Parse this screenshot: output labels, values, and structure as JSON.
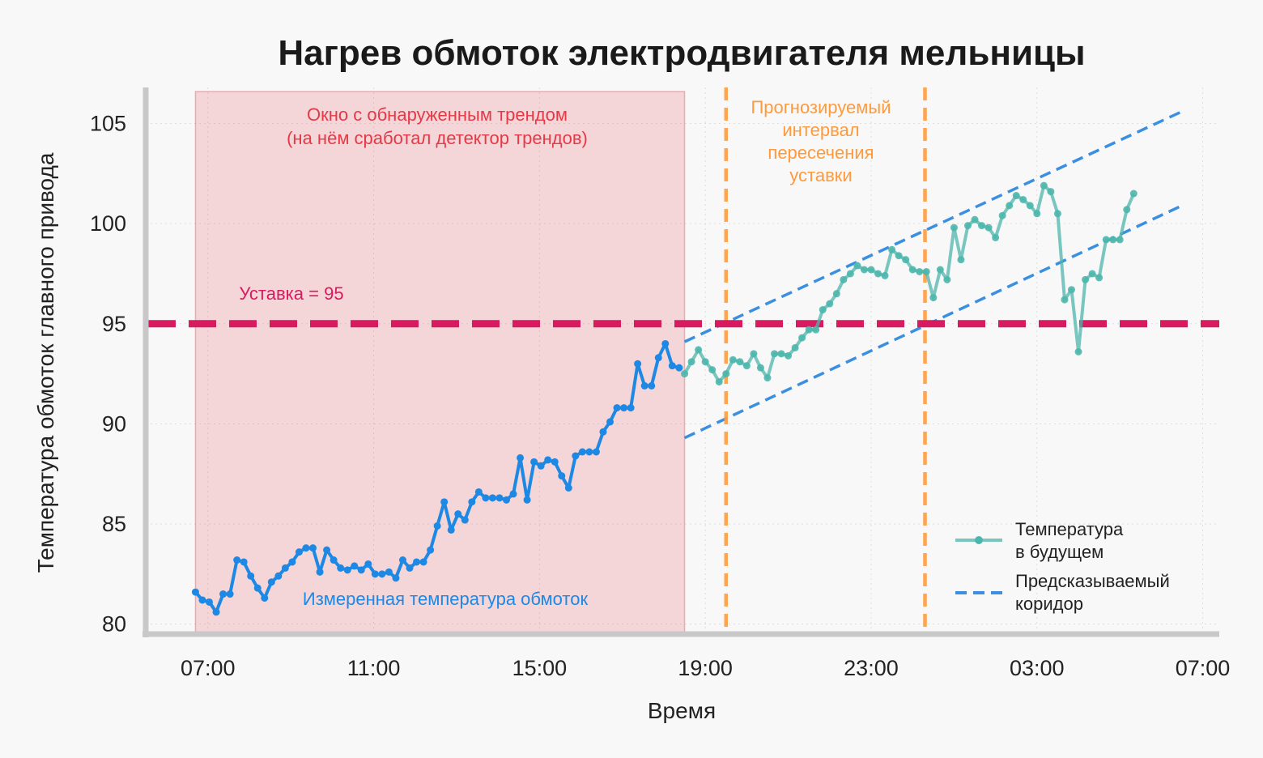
{
  "chart_data": {
    "type": "line",
    "title": "Нагрев обмоток электродвигателя мельницы",
    "xlabel": "Время",
    "ylabel": "Температура обмоток главного привода",
    "x_ticks": [
      "07:00",
      "11:00",
      "15:00",
      "19:00",
      "23:00",
      "03:00",
      "07:00"
    ],
    "x_tick_hours": [
      0,
      4,
      8,
      12,
      16,
      20,
      24
    ],
    "xlim_hours": [
      -1.5,
      24.4
    ],
    "y_ticks": [
      80,
      85,
      90,
      95,
      100,
      105
    ],
    "ylim": [
      79.5,
      106.8
    ],
    "grid": true,
    "setpoint": {
      "value": 95,
      "label": "Уставка = 95",
      "color": "#d81b60"
    },
    "trend_window": {
      "x_start_hours": -0.3,
      "x_end_hours": 11.5,
      "label_line1": "Окно с обнаруженным трендом",
      "label_line2": "(на нём сработал детектор трендов)",
      "color": "#e53946"
    },
    "crossing_interval": {
      "x_start_hours": 12.5,
      "x_end_hours": 17.3,
      "label_lines": [
        "Прогнозируемый",
        "интервал",
        "пересечения",
        "уставки"
      ],
      "color": "#ff9a3c"
    },
    "corridor": {
      "name": "Предсказываемый коридор",
      "color": "#3a8fe0",
      "upper": {
        "x_hours": [
          11.5,
          23.5
        ],
        "y": [
          94.1,
          105.6
        ]
      },
      "lower": {
        "x_hours": [
          11.5,
          23.5
        ],
        "y": [
          89.3,
          100.9
        ]
      }
    },
    "series": [
      {
        "label": "Измеренная температура обмоток",
        "color": "#1e88e5",
        "x_start_hours": -0.3,
        "x_step_hours": 0.1667,
        "values": [
          81.6,
          81.2,
          81.1,
          80.6,
          81.5,
          81.5,
          83.2,
          83.1,
          82.4,
          81.8,
          81.3,
          82.1,
          82.4,
          82.8,
          83.1,
          83.6,
          83.8,
          83.8,
          82.6,
          83.7,
          83.2,
          82.8,
          82.7,
          82.9,
          82.7,
          83.0,
          82.5,
          82.5,
          82.6,
          82.3,
          83.2,
          82.8,
          83.1,
          83.1,
          83.7,
          84.9,
          86.1,
          84.7,
          85.5,
          85.2,
          86.1,
          86.6,
          86.3,
          86.3,
          86.3,
          86.2,
          86.5,
          88.3,
          86.2,
          88.1,
          87.9,
          88.2,
          88.1,
          87.4,
          86.8,
          88.4,
          88.6,
          88.6,
          88.6,
          89.6,
          90.1,
          90.8,
          90.8,
          90.8,
          93.0,
          91.9,
          91.9,
          93.3,
          94.0,
          92.9,
          92.8
        ]
      },
      {
        "label": "Температура в будущем",
        "color": "#4db6ac",
        "x_start_hours": 11.5,
        "x_step_hours": 0.1667,
        "values": [
          92.5,
          93.1,
          93.7,
          93.1,
          92.7,
          92.1,
          92.5,
          93.2,
          93.1,
          92.9,
          93.5,
          92.8,
          92.3,
          93.5,
          93.5,
          93.4,
          93.8,
          94.3,
          94.7,
          94.7,
          95.7,
          96.0,
          96.5,
          97.2,
          97.5,
          97.9,
          97.7,
          97.7,
          97.5,
          97.4,
          98.7,
          98.4,
          98.2,
          97.7,
          97.6,
          97.6,
          96.3,
          97.7,
          97.2,
          99.8,
          98.2,
          99.9,
          100.2,
          99.9,
          99.8,
          99.3,
          100.4,
          100.9,
          101.4,
          101.2,
          100.9,
          100.5,
          101.9,
          101.6,
          100.5,
          96.2,
          96.7,
          93.6,
          97.2,
          97.5,
          97.3,
          99.2,
          99.2,
          99.2,
          100.7,
          101.5
        ]
      }
    ],
    "legend": {
      "placement": "bottom-right",
      "items": [
        {
          "line1": "Температура",
          "line2": "в будущем"
        },
        {
          "line1": "Предсказываемый",
          "line2": "коридор"
        }
      ]
    }
  }
}
